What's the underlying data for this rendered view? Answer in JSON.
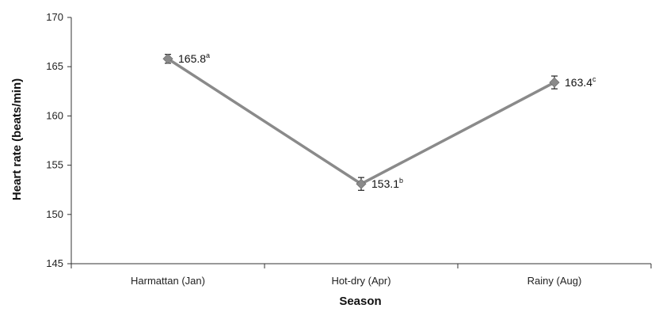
{
  "chart_data": {
    "type": "line",
    "categories": [
      "Harmattan (Jan)",
      "Hot-dry (Apr)",
      "Rainy (Aug)"
    ],
    "series": [
      {
        "values": [
          165.8,
          153.1,
          163.4
        ],
        "error": [
          0.45,
          0.65,
          0.65
        ],
        "labels": [
          "165.8",
          "153.1",
          "163.4"
        ],
        "label_superscripts": [
          "a",
          "b",
          "c"
        ]
      }
    ],
    "xlabel": "Season",
    "ylabel": "Heart rate (beats/min)",
    "ylim": [
      145,
      170
    ],
    "yticks": [
      145,
      150,
      155,
      160,
      165,
      170
    ],
    "grid": false,
    "line_color": "#8a8a8a",
    "marker": "diamond"
  }
}
